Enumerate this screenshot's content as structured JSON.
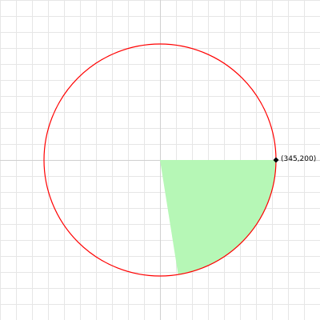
{
  "figure": {
    "colors": {
      "background": "#ffffff",
      "grid": "#e6e6e6",
      "axis": "#d0d0d0",
      "circle": "#ff0000",
      "sector_fill": "#b6f7b6",
      "point": "#000000"
    },
    "circle": {
      "center": [
        200,
        200
      ],
      "radius": 145
    },
    "sector": {
      "start_angle_deg": 0,
      "end_angle_deg": 81
    },
    "point": {
      "label": "(345,200)"
    }
  }
}
